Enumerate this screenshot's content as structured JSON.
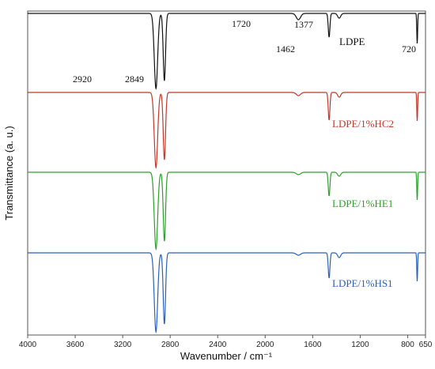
{
  "chart_data": {
    "type": "line",
    "title": "",
    "xlabel": "Wavenumber / cm⁻¹",
    "ylabel": "Transmittance (a. u.)",
    "x_reversed": true,
    "xlim": [
      4000,
      650
    ],
    "x_ticks": [
      4000,
      3600,
      3200,
      2800,
      2400,
      2000,
      1600,
      1200,
      800,
      650
    ],
    "x_tick_labels": [
      "4000",
      "3600",
      "3200",
      "2800",
      "2400",
      "2000",
      "1600",
      "1200",
      "800",
      "650"
    ],
    "grid": false,
    "series": [
      {
        "name": "LDPE",
        "color": "#111111",
        "peaks": [
          [
            2920,
            0.95
          ],
          [
            2849,
            0.85
          ],
          [
            1720,
            0.08
          ],
          [
            1462,
            0.3
          ],
          [
            1377,
            0.06
          ],
          [
            720,
            0.38
          ]
        ]
      },
      {
        "name": "LDPE/1%HC2",
        "color": "#c0392b",
        "peaks": [
          [
            2920,
            0.95
          ],
          [
            2849,
            0.85
          ],
          [
            1720,
            0.04
          ],
          [
            1462,
            0.35
          ],
          [
            1377,
            0.06
          ],
          [
            720,
            0.36
          ]
        ]
      },
      {
        "name": "LDPE/1%HE1",
        "color": "#2ca02c",
        "peaks": [
          [
            2920,
            0.97
          ],
          [
            2849,
            0.87
          ],
          [
            1720,
            0.03
          ],
          [
            1462,
            0.3
          ],
          [
            1377,
            0.05
          ],
          [
            720,
            0.35
          ]
        ]
      },
      {
        "name": "LDPE/1%HS1",
        "color": "#2a62b8",
        "peaks": [
          [
            2920,
            1.0
          ],
          [
            2849,
            0.9
          ],
          [
            1720,
            0.03
          ],
          [
            1462,
            0.32
          ],
          [
            1377,
            0.06
          ],
          [
            720,
            0.36
          ]
        ]
      }
    ],
    "peak_annotations": [
      "2920",
      "2849",
      "1720",
      "1462",
      "1377",
      "720"
    ]
  }
}
